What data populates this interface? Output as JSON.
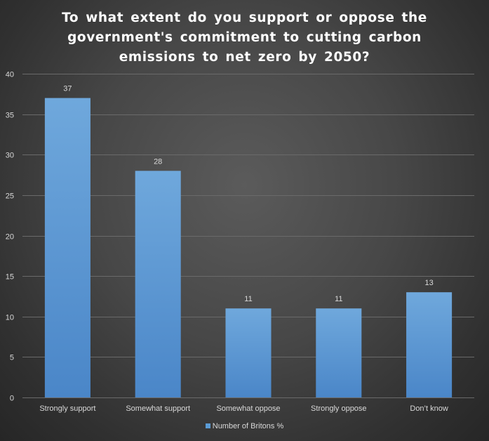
{
  "chart_data": {
    "type": "bar",
    "title": "To what extent do you support or oppose the\ngovernment's commitment to cutting carbon\nemissions to net zero by 2050?",
    "categories": [
      "Strongly support",
      "Somewhat support",
      "Somewhat oppose",
      "Strongly oppose",
      "Don’t know"
    ],
    "series": [
      {
        "name": "Number of Britons %",
        "values": [
          37,
          28,
          11,
          11,
          13
        ]
      }
    ],
    "data_labels": [
      "37",
      "28",
      "11",
      "11",
      "13"
    ],
    "ylim": [
      0,
      40
    ],
    "yticks": [
      0,
      5,
      10,
      15,
      20,
      25,
      30,
      35,
      40
    ],
    "xlabel": "",
    "ylabel": "",
    "grid": true,
    "legend_position": "bottom",
    "colors": {
      "bar_top": "#6fa8dc",
      "bar_bottom": "#4a86c8",
      "gridline": "#6a6a6a",
      "text": "#d9d9d9",
      "title": "#ffffff"
    }
  }
}
